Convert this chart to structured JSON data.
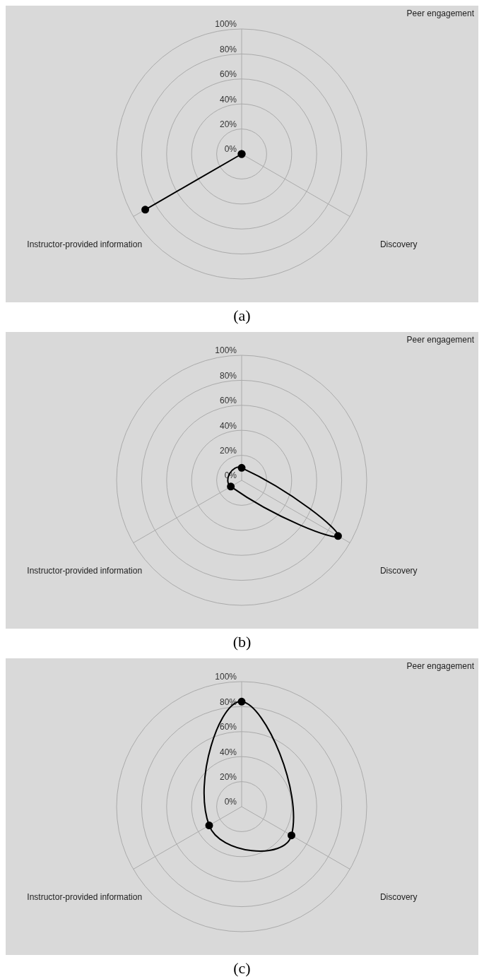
{
  "chart_data": [
    {
      "type": "radar",
      "categories": [
        "Peer engagement",
        "Discovery",
        "Instructor-provided information"
      ],
      "series": [
        {
          "color": "#000000",
          "values": [
            0,
            0,
            89
          ]
        }
      ],
      "ylim": [
        0,
        100
      ],
      "yticks": [
        {
          "value": 0,
          "label": "0%"
        },
        {
          "value": 20,
          "label": "20%"
        },
        {
          "value": 40,
          "label": "40%"
        },
        {
          "value": 60,
          "label": "60%"
        },
        {
          "value": 80,
          "label": "80%"
        },
        {
          "value": 100,
          "label": "100%"
        }
      ],
      "grid": true,
      "legend": false,
      "marker": "circle",
      "line_style": "solid",
      "annotations": [
        "(a)"
      ]
    },
    {
      "type": "radar",
      "categories": [
        "Peer engagement",
        "Discovery",
        "Instructor-provided information"
      ],
      "series": [
        {
          "color": "#000000",
          "values": [
            10,
            89,
            10
          ]
        }
      ],
      "ylim": [
        0,
        100
      ],
      "yticks": [
        {
          "value": 0,
          "label": "0%"
        },
        {
          "value": 20,
          "label": "20%"
        },
        {
          "value": 40,
          "label": "40%"
        },
        {
          "value": 60,
          "label": "60%"
        },
        {
          "value": 80,
          "label": "80%"
        },
        {
          "value": 100,
          "label": "100%"
        }
      ],
      "grid": true,
      "legend": false,
      "marker": "circle",
      "line_style": "solid",
      "annotations": [
        "(b)"
      ]
    },
    {
      "type": "radar",
      "categories": [
        "Peer engagement",
        "Discovery",
        "Instructor-provided information"
      ],
      "series": [
        {
          "color": "#000000",
          "values": [
            84,
            46,
            30
          ]
        }
      ],
      "ylim": [
        0,
        100
      ],
      "yticks": [
        {
          "value": 0,
          "label": "0%"
        },
        {
          "value": 20,
          "label": "20%"
        },
        {
          "value": 40,
          "label": "40%"
        },
        {
          "value": 60,
          "label": "60%"
        },
        {
          "value": 80,
          "label": "80%"
        },
        {
          "value": 100,
          "label": "100%"
        }
      ],
      "grid": true,
      "legend": false,
      "marker": "circle",
      "line_style": "solid",
      "annotations": [
        "(c)"
      ]
    }
  ]
}
